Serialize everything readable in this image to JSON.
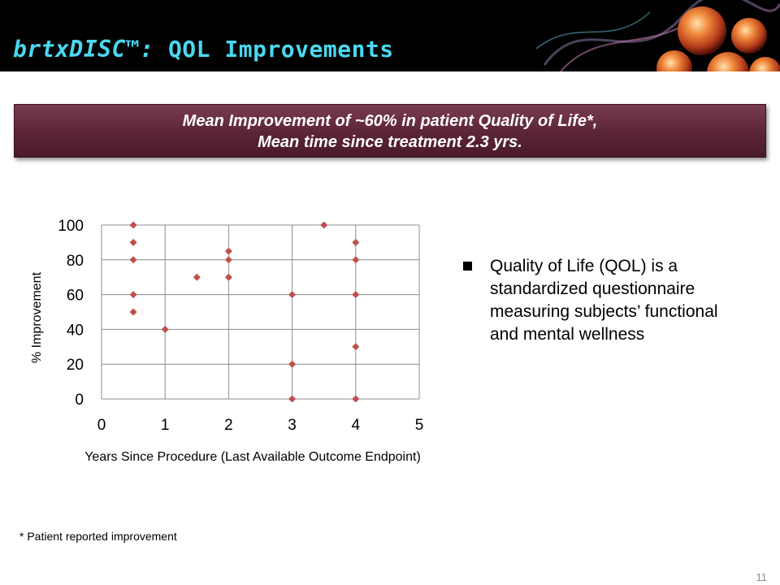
{
  "header": {
    "brand": "brtxDISC™:",
    "title": "QOL Improvements",
    "title_color": "#4ad8f0"
  },
  "banner": {
    "line1": "Mean Improvement of ~60% in patient Quality of Life*,",
    "line2": "Mean time since treatment 2.3 yrs.",
    "color": "#5b2438"
  },
  "chart_data": {
    "type": "scatter",
    "xlabel": "Years Since Procedure (Last Available Outcome Endpoint)",
    "ylabel": "% Improvement",
    "xlim": [
      0,
      5
    ],
    "ylim": [
      0,
      100
    ],
    "xticks": [
      0,
      1,
      2,
      3,
      4,
      5
    ],
    "yticks": [
      0,
      20,
      40,
      60,
      80,
      100
    ],
    "grid": true,
    "marker_color": "#c0504d",
    "marker": "diamond",
    "series": [
      {
        "points": [
          {
            "x": 0.5,
            "y": 100
          },
          {
            "x": 0.5,
            "y": 90
          },
          {
            "x": 0.5,
            "y": 80
          },
          {
            "x": 0.5,
            "y": 60
          },
          {
            "x": 0.5,
            "y": 50
          },
          {
            "x": 1,
            "y": 40
          },
          {
            "x": 1.5,
            "y": 70
          },
          {
            "x": 2,
            "y": 85
          },
          {
            "x": 2,
            "y": 80
          },
          {
            "x": 2,
            "y": 70
          },
          {
            "x": 3,
            "y": 60
          },
          {
            "x": 3,
            "y": 20
          },
          {
            "x": 3,
            "y": 0
          },
          {
            "x": 3.5,
            "y": 100
          },
          {
            "x": 4,
            "y": 90
          },
          {
            "x": 4,
            "y": 80
          },
          {
            "x": 4,
            "y": 60
          },
          {
            "x": 4,
            "y": 30
          },
          {
            "x": 4,
            "y": 0
          }
        ]
      }
    ]
  },
  "bullet": {
    "text": "Quality of Life (QOL) is a standardized questionnaire measuring subjects’ functional and mental wellness"
  },
  "footnote": "* Patient reported improvement",
  "page_number": "11"
}
